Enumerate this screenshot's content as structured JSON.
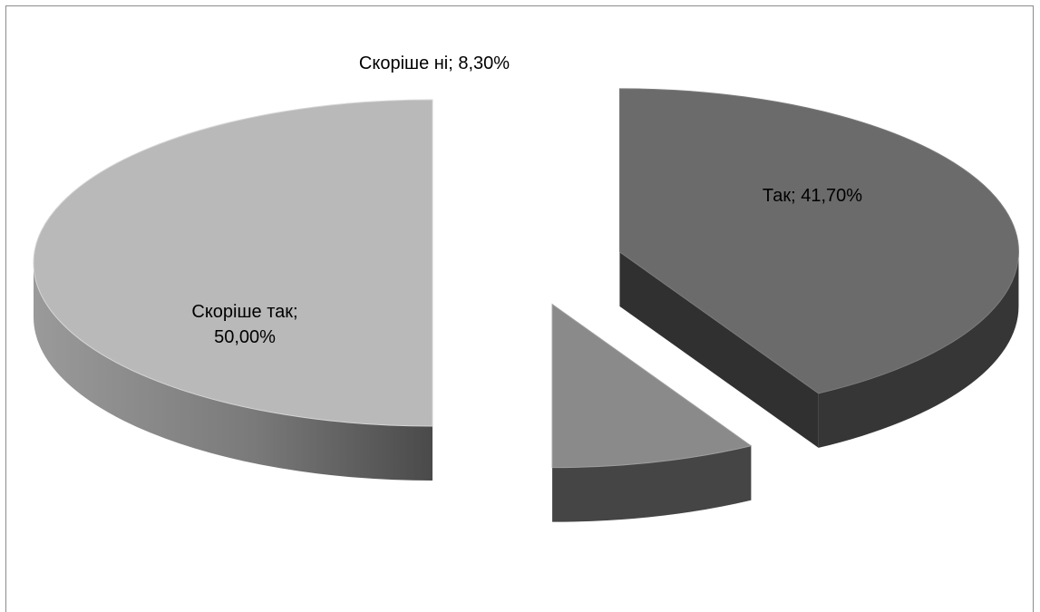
{
  "chart_data": {
    "type": "pie",
    "style": "3d-exploded",
    "title": "",
    "legend": "none",
    "slices": [
      {
        "name": "Так",
        "value": 41.7,
        "label_lines": [
          "Так; 41,70%"
        ],
        "color": "#6b6b6b"
      },
      {
        "name": "Скоріше ні",
        "value": 8.3,
        "label_lines": [
          "Скоріше ні; 8,30%"
        ],
        "color": "#8a8a8a"
      },
      {
        "name": "Скоріше так",
        "value": 50.0,
        "label_lines": [
          "Скоріше так;",
          "50,00%"
        ],
        "color": "#b9b9b9"
      }
    ]
  }
}
